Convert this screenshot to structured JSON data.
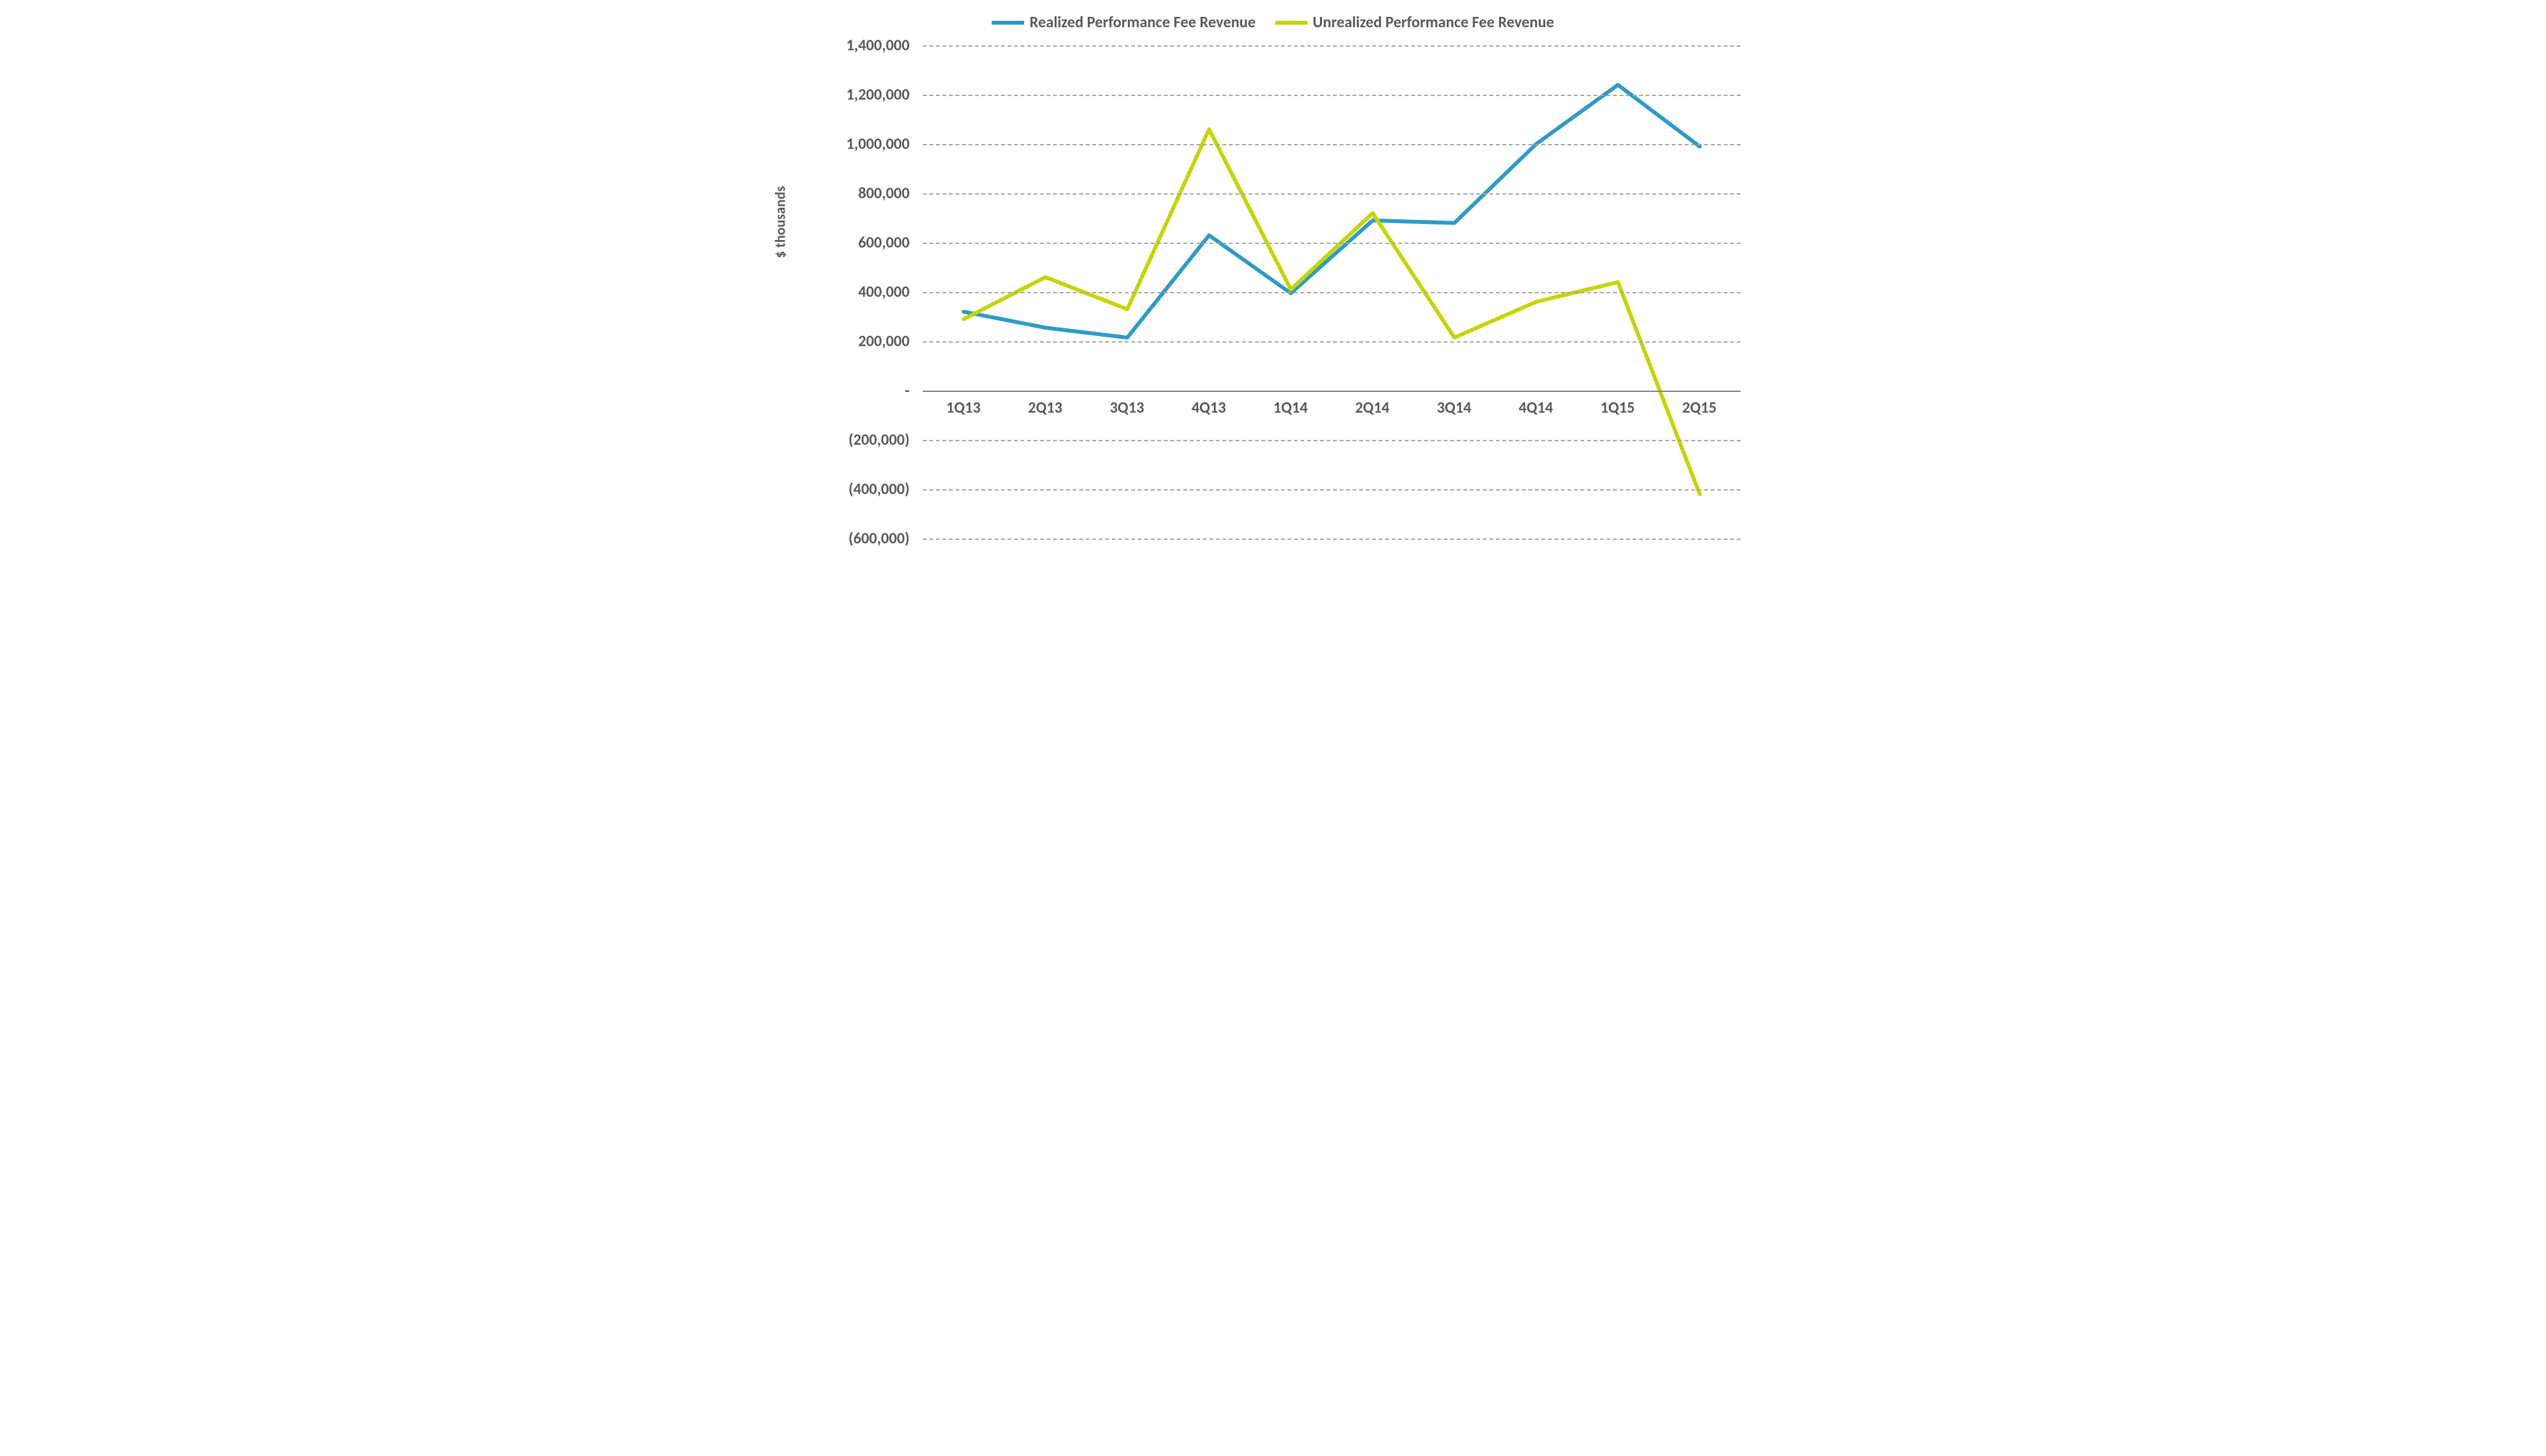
{
  "chart": {
    "type": "line",
    "background_color": "#ffffff",
    "grid_color": "#a6a6a6",
    "axis_color": "#808080",
    "text_color": "#595959",
    "label_fontsize": 24,
    "label_fontweight": "bold",
    "line_width": 6,
    "y_axis_title": "$ thousands",
    "categories": [
      "1Q13",
      "2Q13",
      "3Q13",
      "4Q13",
      "1Q14",
      "2Q14",
      "3Q14",
      "4Q14",
      "1Q15",
      "2Q15"
    ],
    "ylim": [
      -600000,
      1400000
    ],
    "ytick_step": 200000,
    "ytick_labels": [
      "(600,000)",
      "(400,000)",
      "(200,000)",
      "-",
      "200,000",
      "400,000",
      "600,000",
      "800,000",
      "1,000,000",
      "1,200,000",
      "1,400,000"
    ],
    "series": [
      {
        "name": "Realized Performance Fee Revenue",
        "color": "#2e9bc6",
        "values": [
          320000,
          255000,
          215000,
          630000,
          395000,
          690000,
          680000,
          1000000,
          1240000,
          990000
        ]
      },
      {
        "name": "Unrealized Performance Fee Revenue",
        "color": "#c4d600",
        "values": [
          290000,
          460000,
          330000,
          1060000,
          410000,
          720000,
          215000,
          360000,
          440000,
          -420000
        ]
      }
    ]
  }
}
